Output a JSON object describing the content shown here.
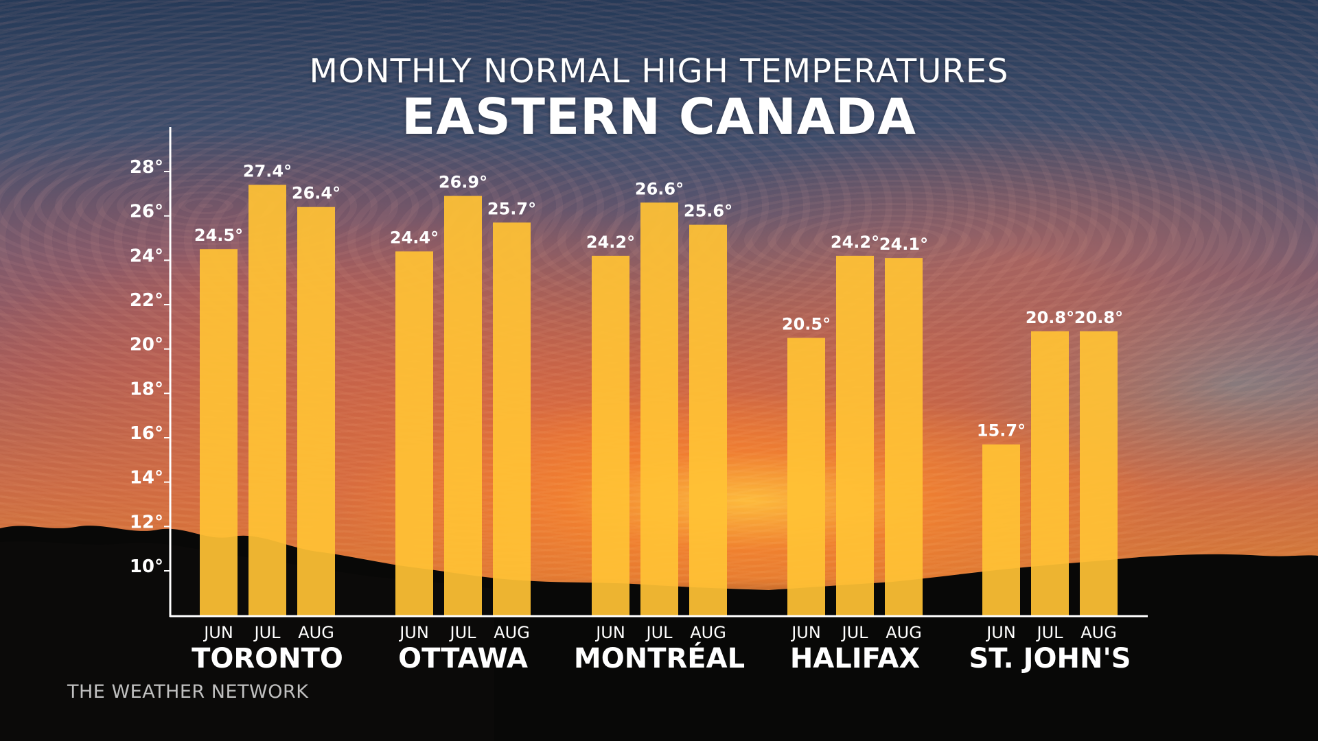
{
  "header": {
    "subtitle": "MONTHLY NORMAL HIGH TEMPERATURES",
    "title": "EASTERN CANADA"
  },
  "footer": {
    "credit": "THE WEATHER NETWORK"
  },
  "colors": {
    "bar": "#FFC235",
    "axis": "#FFFFFF",
    "text": "#FFFFFF"
  },
  "chart_data": {
    "type": "bar",
    "title": "EASTERN CANADA",
    "subtitle": "MONTHLY NORMAL HIGH TEMPERATURES",
    "unit_suffix": "°",
    "ylim": [
      8,
      30
    ],
    "y_ticks": [
      10,
      12,
      14,
      16,
      18,
      20,
      22,
      24,
      26,
      28
    ],
    "y_tick_labels": [
      "10°",
      "12°",
      "14°",
      "16°",
      "18°",
      "20°",
      "22°",
      "24°",
      "26°",
      "28°"
    ],
    "grid": false,
    "months": [
      "JUN",
      "JUL",
      "AUG"
    ],
    "groups": [
      {
        "city": "TORONTO",
        "values": [
          24.5,
          27.4,
          26.4
        ],
        "labels": [
          "24.5°",
          "27.4°",
          "26.4°"
        ]
      },
      {
        "city": "OTTAWA",
        "values": [
          24.4,
          26.9,
          25.7
        ],
        "labels": [
          "24.4°",
          "26.9°",
          "25.7°"
        ]
      },
      {
        "city": "MONTRÉAL",
        "values": [
          24.2,
          26.6,
          25.6
        ],
        "labels": [
          "24.2°",
          "26.6°",
          "25.6°"
        ]
      },
      {
        "city": "HALIFAX",
        "values": [
          20.5,
          24.2,
          24.1
        ],
        "labels": [
          "20.5°",
          "24.2°",
          "24.1°"
        ]
      },
      {
        "city": "ST. JOHN'S",
        "values": [
          15.7,
          20.8,
          20.8
        ],
        "labels": [
          "15.7°",
          "20.8°",
          "20.8°"
        ]
      }
    ]
  }
}
